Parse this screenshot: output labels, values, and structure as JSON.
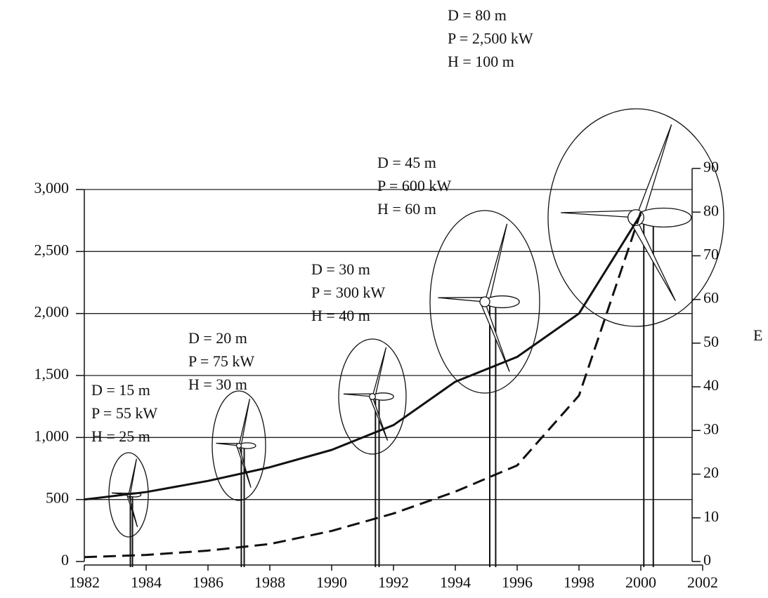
{
  "chart_data": {
    "type": "line",
    "x": [
      1982,
      1984,
      1986,
      1988,
      1990,
      1992,
      1994,
      1996,
      1998,
      2000
    ],
    "series": [
      {
        "color": "#111111",
        "values": [
          500,
          560,
          650,
          760,
          900,
          1100,
          1450,
          1650,
          2000,
          2800
        ]
      },
      {
        "color": "#111111",
        "dashed": true,
        "axis": "y2",
        "values": [
          1,
          1.5,
          2.5,
          4,
          7,
          11,
          16,
          22,
          38,
          80
        ]
      }
    ],
    "xlim": [
      1982,
      2002
    ],
    "xticks": [
      1982,
      1984,
      1986,
      1988,
      1990,
      1992,
      1994,
      1996,
      1998,
      2000,
      2002
    ],
    "ylim": [
      0,
      3000
    ],
    "yticks": [
      0,
      500,
      {
        "value": 1000,
        "label": "1,000"
      },
      {
        "value": 1500,
        "label": "1,500"
      },
      {
        "value": 2000,
        "label": "2,000"
      },
      {
        "value": 2500,
        "label": "2,500"
      },
      {
        "value": 3000,
        "label": "3,000"
      }
    ],
    "y2lim": [
      0,
      90
    ],
    "y2ticks": [
      0,
      10,
      20,
      30,
      40,
      50,
      60,
      70,
      80,
      90
    ],
    "y2_label": "E",
    "grid": true,
    "annotations": [
      [
        "D = 15 m",
        "P = 55 kW",
        "H = 25 m"
      ],
      [
        "D = 20 m",
        "P = 75 kW",
        "H = 30 m"
      ],
      [
        "D = 30 m",
        "P = 300 kW",
        "H = 40 m"
      ],
      [
        "D = 45 m",
        "P = 600 kW",
        "H = 60 m"
      ],
      [
        "D = 80 m",
        "P = 2,500 kW",
        "H = 100 m"
      ]
    ]
  }
}
